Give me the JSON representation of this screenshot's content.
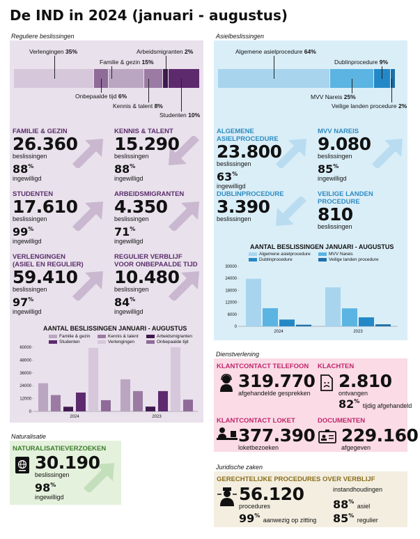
{
  "title": "De IND in 2024 (januari - augustus)",
  "colors": {
    "regulier_bg": "#e9e1ec",
    "asiel_bg": "#daeef8",
    "dienst_bg": "#fadbe6",
    "natur_bg": "#e4f1dc",
    "juridisch_bg": "#f3eee0",
    "regulier_accent": "#5a2d6b",
    "asiel_accent": "#2e8bc0",
    "dienst_accent": "#c0256a",
    "natur_accent": "#3b7d2b",
    "juridisch_accent": "#8a6d1a"
  },
  "regulier": {
    "section_label": "Reguliere beslissingen",
    "bar_segments": [
      {
        "label": "Verlengingen",
        "pct": "35%",
        "value": 35,
        "color": "#d6c7db"
      },
      {
        "label": "Onbepaalde tijd",
        "pct": "6%",
        "value": 6,
        "color": "#8f6b98"
      },
      {
        "label": "Familie & gezin",
        "pct": "15%",
        "value": 15,
        "color": "#bba6c2"
      },
      {
        "label": "Kennis & talent",
        "pct": "8%",
        "value": 8,
        "color": "#9b7ba3"
      },
      {
        "label": "Arbeidsmigranten",
        "pct": "2%",
        "value": 2,
        "color": "#3f1a4f"
      },
      {
        "label": "Studenten",
        "pct": "10%",
        "value": 10,
        "color": "#5e2a6e"
      }
    ],
    "kpis": [
      {
        "category": "FAMILIE & GEZIN",
        "number": "26.360",
        "unit": "beslissingen",
        "pct": "88",
        "pct_sign": "%",
        "pct_label": "ingewilligd"
      },
      {
        "category": "KENNIS & TALENT",
        "number": "15.290",
        "unit": "beslissingen",
        "pct": "88",
        "pct_sign": "%",
        "pct_label": "ingewilligd"
      },
      {
        "category": "STUDENTEN",
        "number": "17.610",
        "unit": "beslissingen",
        "pct": "99",
        "pct_sign": "%",
        "pct_label": "ingewilligd"
      },
      {
        "category": "ARBEIDSMIGRANTEN",
        "number": "4.350",
        "unit": "beslissingen",
        "pct": "71",
        "pct_sign": "%",
        "pct_label": "ingewilligd"
      },
      {
        "category": "VERLENGINGEN",
        "category2": "(ASIEL EN REGULIER)",
        "number": "59.410",
        "unit": "beslissingen",
        "pct": "97",
        "pct_sign": "%",
        "pct_label": "ingewilligd"
      },
      {
        "category": "REGULIER VERBLIJF",
        "category2": "VOOR ONBEPAALDE TIJD",
        "number": "10.480",
        "unit": "beslissingen",
        "pct": "84",
        "pct_sign": "%",
        "pct_label": "ingewilligd"
      }
    ]
  },
  "asiel": {
    "section_label": "Asielbeslissingen",
    "bar_segments": [
      {
        "label": "Algemene asielprocedure",
        "pct": "64%",
        "value": 64,
        "color": "#a8d4ee"
      },
      {
        "label": "MVV Nareis",
        "pct": "25%",
        "value": 25,
        "color": "#5bb4e2"
      },
      {
        "label": "Dublinprocedure",
        "pct": "9%",
        "value": 9,
        "color": "#2488c6"
      },
      {
        "label": "Veilige landen procedure",
        "pct": "2%",
        "value": 2,
        "color": "#1f6fa8"
      }
    ],
    "kpis": [
      {
        "category": "ALGEMENE ASIELPROCEDURE",
        "number": "23.800",
        "unit": "beslissingen",
        "pct": "63",
        "pct_sign": "%",
        "pct_label": "ingewilligd"
      },
      {
        "category": "MVV NAREIS",
        "number": "9.080",
        "unit": "beslissingen",
        "pct": "85",
        "pct_sign": "%",
        "pct_label": "ingewilligd"
      },
      {
        "category": "DUBLINPROCEDURE",
        "number": "3.390",
        "unit": "beslissingen"
      },
      {
        "category": "VEILIGE LANDEN PROCEDURE",
        "number": "810",
        "unit": "beslissingen"
      }
    ]
  },
  "dienst": {
    "section_label": "Dienstverlening",
    "items": [
      {
        "category": "KLANTCONTACT TELEFOON",
        "number": "319.770",
        "unit": "afgehandelde gesprekken"
      },
      {
        "category": "KLACHTEN",
        "number": "2.810",
        "unit": "ontvangen",
        "pct": "82",
        "pct_sign": "%",
        "pct_label": "tijdig afgehandeld"
      },
      {
        "category": "KLANTCONTACT LOKET",
        "number": "377.390",
        "unit": "loketbezoeken"
      },
      {
        "category": "DOCUMENTEN",
        "number": "229.160",
        "unit": "afgegeven"
      }
    ]
  },
  "naturalisatie": {
    "section_label": "Naturalisatie",
    "category": "NATURALISATIEVERZOEKEN",
    "number": "30.190",
    "unit": "beslissingen",
    "pct": "98",
    "pct_sign": "%",
    "pct_label": "ingewilligd"
  },
  "juridisch": {
    "section_label": "Juridische zaken",
    "category": "GERECHTELIJKE PROCEDURES OVER VERBLIJF",
    "number": "56.120",
    "unit": "procedures",
    "pct1": "99",
    "pct1_label": "aanwezig op zitting",
    "right_title": "instandhoudingen",
    "pct2": "88",
    "pct2_label": "asiel",
    "pct3": "85",
    "pct3_label": "regulier",
    "pct_sign": "%"
  },
  "chart_data": [
    {
      "type": "bar",
      "title": "AANTAL BESLISSINGEN JANUARI - AUGUSTUS",
      "categories": [
        "2024",
        "2023"
      ],
      "series": [
        {
          "name": "Familie & gezin",
          "values": [
            26360,
            30000
          ],
          "color": "#bba6c2"
        },
        {
          "name": "Kennis & talent",
          "values": [
            15290,
            19000
          ],
          "color": "#9b7ba3"
        },
        {
          "name": "Arbeidsmigranten",
          "values": [
            4350,
            4500
          ],
          "color": "#3f1a4f"
        },
        {
          "name": "Studenten",
          "values": [
            17610,
            19000
          ],
          "color": "#5e2a6e"
        },
        {
          "name": "Verlengingen",
          "values": [
            59410,
            60000
          ],
          "color": "#d6c7db"
        },
        {
          "name": "Onbepaalde tijd",
          "values": [
            10480,
            11000
          ],
          "color": "#8f6b98"
        }
      ],
      "bar_order": [
        "Familie & gezin",
        "Kennis & talent",
        "Arbeidsmigranten",
        "Studenten",
        "Verlengingen",
        "Onbepaalde tijd"
      ],
      "ylim": [
        0,
        60000
      ],
      "yticks": [
        "0",
        "12000",
        "24000",
        "36000",
        "48000",
        "60000"
      ],
      "ytick_values": [
        0,
        12000,
        24000,
        36000,
        48000,
        60000
      ],
      "grid": false,
      "legend": "top"
    },
    {
      "type": "bar",
      "title": "AANTAL BESLISSINGEN JANUARI - AUGUSTUS",
      "categories": [
        "2024",
        "2023"
      ],
      "series": [
        {
          "name": "Algemene asielprocedure",
          "values": [
            23800,
            19500
          ],
          "color": "#a8d4ee"
        },
        {
          "name": "MVV Nareis",
          "values": [
            9080,
            9000
          ],
          "color": "#5bb4e2"
        },
        {
          "name": "Dublinprocedure",
          "values": [
            3390,
            4500
          ],
          "color": "#2488c6"
        },
        {
          "name": "Veilige landen procedure",
          "values": [
            810,
            1000
          ],
          "color": "#1f6fa8"
        }
      ],
      "bar_order": [
        "Algemene asielprocedure",
        "MVV Nareis",
        "Dublinprocedure",
        "Veilige landen procedure"
      ],
      "ylim": [
        0,
        30000
      ],
      "yticks": [
        "0",
        "6000",
        "12000",
        "18000",
        "24000",
        "30000"
      ],
      "ytick_values": [
        0,
        6000,
        12000,
        18000,
        24000,
        30000
      ],
      "grid": false,
      "legend": "top"
    }
  ]
}
